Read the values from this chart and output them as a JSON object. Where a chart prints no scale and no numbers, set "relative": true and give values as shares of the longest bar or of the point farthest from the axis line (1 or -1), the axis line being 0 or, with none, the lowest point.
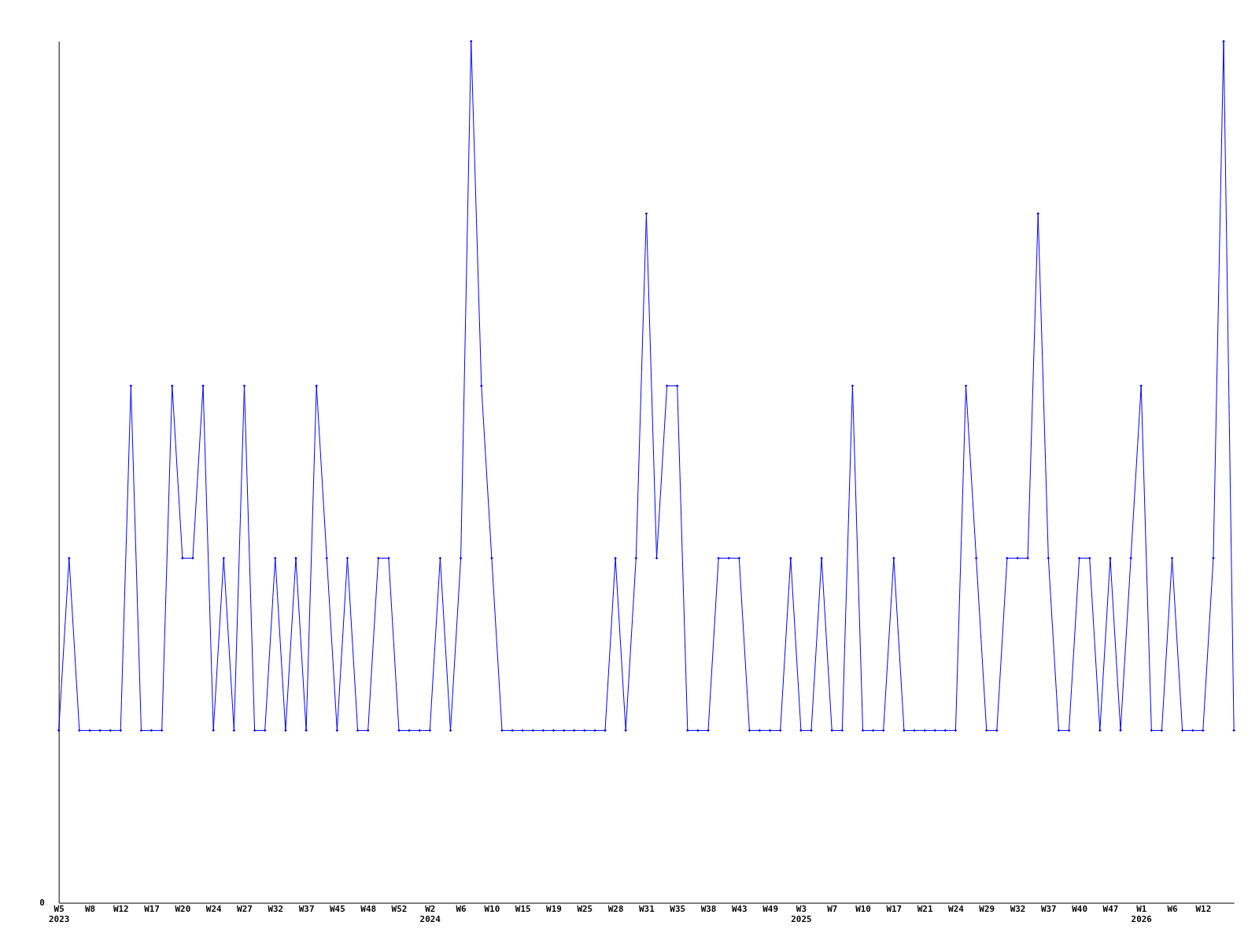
{
  "chart_data": {
    "type": "line",
    "relative": true,
    "marker": "diamond",
    "grid": false,
    "categories": [
      "W5\n2023",
      null,
      null,
      "W8",
      null,
      null,
      "W12",
      null,
      null,
      "W17",
      null,
      null,
      "W20",
      null,
      null,
      "W24",
      null,
      null,
      "W27",
      null,
      null,
      "W32",
      null,
      null,
      "W37",
      null,
      null,
      "W45",
      null,
      null,
      "W48",
      null,
      null,
      "W52",
      null,
      null,
      "W2\n2024",
      null,
      null,
      "W6",
      null,
      null,
      "W10",
      null,
      null,
      "W15",
      null,
      null,
      "W19",
      null,
      null,
      "W25",
      null,
      null,
      "W28",
      null,
      null,
      "W31",
      null,
      null,
      "W35",
      null,
      null,
      "W38",
      null,
      null,
      "W43",
      null,
      null,
      "W49",
      null,
      null,
      "W3\n2025",
      null,
      null,
      "W7",
      null,
      null,
      "W10",
      null,
      null,
      "W17",
      null,
      null,
      "W21",
      null,
      null,
      "W24",
      null,
      null,
      "W29",
      null,
      null,
      "W32",
      null,
      null,
      "W37",
      null,
      null,
      "W40",
      null,
      null,
      "W47",
      null,
      null,
      "W1\n2026",
      null,
      null,
      "W6",
      null,
      null,
      "W12",
      null,
      null,
      null
    ],
    "series": [
      {
        "color": "#0000ff",
        "values": [
          0.2,
          0.4,
          0.2,
          0.2,
          0.2,
          0.2,
          0.2,
          0.6,
          0.2,
          0.2,
          0.2,
          0.6,
          0.4,
          0.4,
          0.6,
          0.2,
          0.4,
          0.2,
          0.6,
          0.2,
          0.2,
          0.4,
          0.2,
          0.4,
          0.2,
          0.6,
          0.4,
          0.2,
          0.4,
          0.2,
          0.2,
          0.4,
          0.4,
          0.2,
          0.2,
          0.2,
          0.2,
          0.4,
          0.2,
          0.4,
          1,
          0.6,
          0.4,
          0.2,
          0.2,
          0.2,
          0.2,
          0.2,
          0.2,
          0.2,
          0.2,
          0.2,
          0.2,
          0.2,
          0.4,
          0.2,
          0.4,
          0.8,
          0.4,
          0.6,
          0.6,
          0.2,
          0.2,
          0.2,
          0.4,
          0.4,
          0.4,
          0.2,
          0.2,
          0.2,
          0.2,
          0.4,
          0.2,
          0.2,
          0.4,
          0.2,
          0.2,
          0.6,
          0.2,
          0.2,
          0.2,
          0.4,
          0.2,
          0.2,
          0.2,
          0.2,
          0.2,
          0.2,
          0.6,
          0.4,
          0.2,
          0.2,
          0.4,
          0.4,
          0.4,
          0.8,
          0.4,
          0.2,
          0.2,
          0.4,
          0.4,
          0.2,
          0.4,
          0.2,
          0.4,
          0.6,
          0.2,
          0.2,
          0.4,
          0.2,
          0.2,
          0.2,
          0.4,
          1,
          0.2
        ]
      }
    ],
    "annotations": [
      "0"
    ]
  }
}
